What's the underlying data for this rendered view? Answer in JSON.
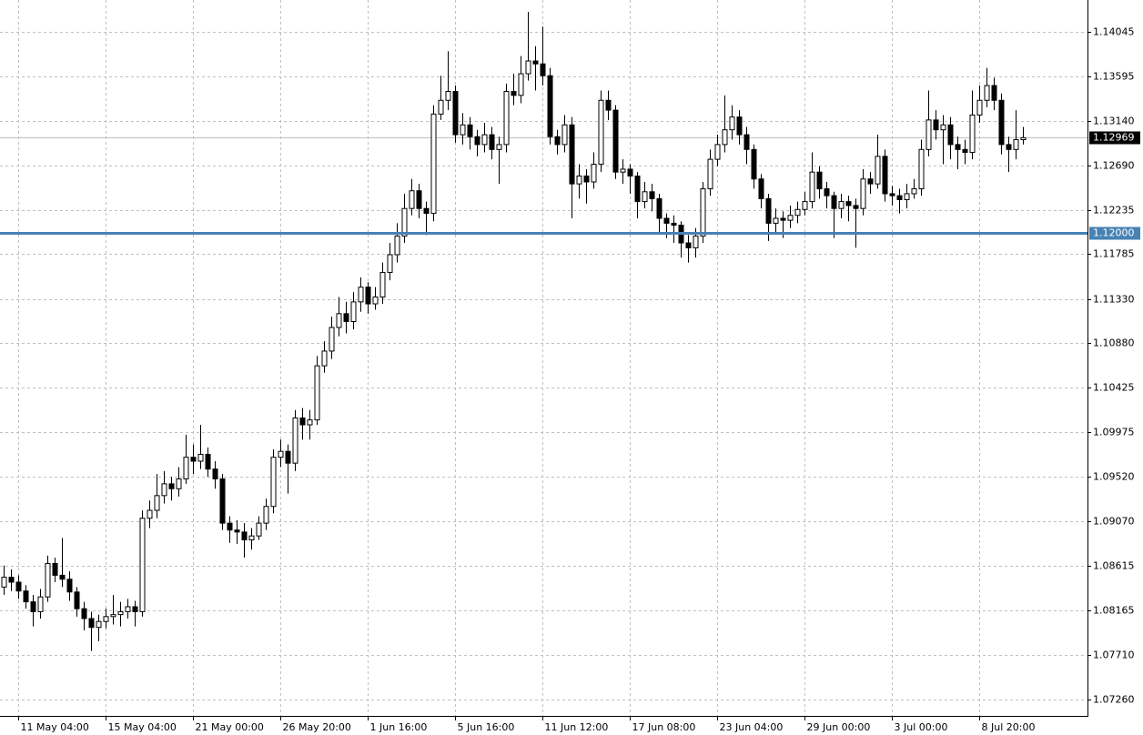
{
  "chart_data": {
    "type": "candlestick",
    "categories": [
      null,
      null,
      "11 May 04:00",
      null,
      null,
      null,
      null,
      null,
      null,
      null,
      null,
      null,
      null,
      null,
      "15 May 04:00",
      null,
      null,
      null,
      null,
      null,
      null,
      null,
      null,
      null,
      null,
      null,
      "21 May 00:00",
      null,
      null,
      null,
      null,
      null,
      null,
      null,
      null,
      null,
      null,
      null,
      "26 May 20:00",
      null,
      null,
      null,
      null,
      null,
      null,
      null,
      null,
      null,
      null,
      null,
      "1 Jun 16:00",
      null,
      null,
      null,
      null,
      null,
      null,
      null,
      null,
      null,
      null,
      null,
      "5 Jun 16:00",
      null,
      null,
      null,
      null,
      null,
      null,
      null,
      null,
      null,
      null,
      null,
      "11 Jun 12:00",
      null,
      null,
      null,
      null,
      null,
      null,
      null,
      null,
      null,
      null,
      null,
      "17 Jun 08:00",
      null,
      null,
      null,
      null,
      null,
      null,
      null,
      null,
      null,
      null,
      null,
      "23 Jun 04:00",
      null,
      null,
      null,
      null,
      null,
      null,
      null,
      null,
      null,
      null,
      null,
      "29 Jun 00:00",
      null,
      null,
      null,
      null,
      null,
      null,
      null,
      null,
      null,
      null,
      null,
      "3 Jul 00:00",
      null,
      null,
      null,
      null,
      null,
      null,
      null,
      null,
      null,
      null,
      null,
      "8 Jul 20:00",
      null,
      null,
      null,
      null,
      null,
      null
    ],
    "open": [
      1.084,
      1.085,
      1.0845,
      1.0836,
      1.0825,
      1.0815,
      1.083,
      1.0864,
      1.0852,
      1.0848,
      1.0835,
      1.0818,
      1.0808,
      1.0799,
      1.0805,
      1.081,
      1.0812,
      1.0815,
      1.082,
      1.0815,
      1.091,
      1.0918,
      1.0933,
      1.0945,
      1.094,
      1.095,
      1.0972,
      1.0968,
      1.0975,
      1.096,
      1.095,
      1.0905,
      1.0898,
      1.0896,
      1.0888,
      1.0892,
      1.0905,
      1.0922,
      1.0972,
      1.0978,
      1.0966,
      1.1012,
      1.1005,
      1.101,
      1.1065,
      1.108,
      1.1104,
      1.1118,
      1.111,
      1.113,
      1.1145,
      1.1128,
      1.1135,
      1.116,
      1.1178,
      1.1197,
      1.1225,
      1.1243,
      1.1225,
      1.122,
      1.1321,
      1.1335,
      1.1344,
      1.13,
      1.131,
      1.1298,
      1.129,
      1.13,
      1.1285,
      1.129,
      1.1344,
      1.134,
      1.1362,
      1.1375,
      1.1372,
      1.136,
      1.1298,
      1.129,
      1.131,
      1.125,
      1.1258,
      1.1252,
      1.127,
      1.1335,
      1.1325,
      1.1262,
      1.1265,
      1.1258,
      1.1232,
      1.1242,
      1.1235,
      1.1215,
      1.121,
      1.1208,
      1.119,
      1.1185,
      1.1197,
      1.1245,
      1.1275,
      1.129,
      1.1305,
      1.1318,
      1.13,
      1.1285,
      1.1255,
      1.1235,
      1.121,
      1.1215,
      1.1213,
      1.1218,
      1.1224,
      1.1232,
      1.1262,
      1.1245,
      1.1238,
      1.1225,
      1.1232,
      1.1228,
      1.1225,
      1.1255,
      1.125,
      1.1278,
      1.124,
      1.1238,
      1.1234,
      1.124,
      1.1245,
      1.1285,
      1.1315,
      1.1305,
      1.131,
      1.129,
      1.1285,
      1.1282,
      1.132,
      1.1335,
      1.135,
      1.1335,
      1.129,
      1.1285,
      1.1295
    ],
    "high": [
      1.0862,
      1.0858,
      1.0852,
      1.0842,
      1.0832,
      1.0838,
      1.0872,
      1.087,
      1.089,
      1.0856,
      1.084,
      1.0825,
      1.0815,
      1.0812,
      1.0818,
      1.0832,
      1.0825,
      1.0828,
      1.0826,
      1.0918,
      1.0928,
      1.0955,
      1.0958,
      1.0952,
      1.0962,
      1.0995,
      1.0985,
      1.1005,
      1.0982,
      1.0968,
      1.0955,
      1.0912,
      1.0908,
      1.0905,
      1.09,
      1.0912,
      1.093,
      1.098,
      1.099,
      1.0985,
      1.102,
      1.1022,
      1.102,
      1.1075,
      1.109,
      1.1115,
      1.1135,
      1.113,
      1.114,
      1.1155,
      1.115,
      1.1145,
      1.117,
      1.119,
      1.121,
      1.124,
      1.1255,
      1.125,
      1.1232,
      1.133,
      1.136,
      1.1385,
      1.135,
      1.1322,
      1.1318,
      1.1305,
      1.1312,
      1.1308,
      1.1298,
      1.1352,
      1.1362,
      1.138,
      1.1425,
      1.139,
      1.141,
      1.1368,
      1.1305,
      1.132,
      1.1318,
      1.127,
      1.1265,
      1.1282,
      1.1345,
      1.1345,
      1.133,
      1.1275,
      1.127,
      1.1262,
      1.1252,
      1.125,
      1.124,
      1.122,
      1.1218,
      1.1212,
      1.1198,
      1.1205,
      1.1252,
      1.1285,
      1.13,
      1.134,
      1.133,
      1.1325,
      1.1308,
      1.129,
      1.126,
      1.124,
      1.1225,
      1.1222,
      1.1228,
      1.1232,
      1.1242,
      1.1282,
      1.1268,
      1.1252,
      1.1242,
      1.124,
      1.1238,
      1.1235,
      1.1265,
      1.1262,
      1.13,
      1.1285,
      1.1248,
      1.1245,
      1.125,
      1.1255,
      1.1295,
      1.1345,
      1.1325,
      1.132,
      1.1318,
      1.1298,
      1.1295,
      1.1345,
      1.135,
      1.1368,
      1.1358,
      1.1342,
      1.1298,
      1.1325,
      1.1308
    ],
    "low": [
      1.0832,
      1.0836,
      1.0828,
      1.0818,
      1.08,
      1.0808,
      1.0825,
      1.0845,
      1.084,
      1.0826,
      1.081,
      1.0796,
      1.0775,
      1.0785,
      1.0798,
      1.0802,
      1.08,
      1.0808,
      1.08,
      1.081,
      1.09,
      1.091,
      1.0925,
      1.0928,
      1.0932,
      1.0945,
      1.0955,
      1.096,
      1.0952,
      1.094,
      1.0898,
      1.0885,
      1.0884,
      1.087,
      1.0878,
      1.0888,
      1.0898,
      1.0915,
      1.0962,
      1.0935,
      1.0958,
      1.099,
      1.099,
      1.1005,
      1.1058,
      1.1072,
      1.1095,
      1.1098,
      1.1102,
      1.112,
      1.1118,
      1.1122,
      1.1128,
      1.1152,
      1.117,
      1.119,
      1.1218,
      1.1215,
      1.1198,
      1.1212,
      1.1315,
      1.1325,
      1.1292,
      1.129,
      1.1285,
      1.1278,
      1.1282,
      1.1275,
      1.125,
      1.1282,
      1.133,
      1.1332,
      1.1355,
      1.1345,
      1.135,
      1.129,
      1.128,
      1.1282,
      1.1215,
      1.1235,
      1.123,
      1.1245,
      1.1262,
      1.1315,
      1.1255,
      1.125,
      1.124,
      1.1215,
      1.1225,
      1.1222,
      1.12,
      1.1195,
      1.119,
      1.1175,
      1.117,
      1.1175,
      1.119,
      1.1238,
      1.1268,
      1.1282,
      1.1295,
      1.129,
      1.127,
      1.1245,
      1.1225,
      1.1192,
      1.12,
      1.1195,
      1.1205,
      1.121,
      1.1218,
      1.1225,
      1.1235,
      1.1225,
      1.1195,
      1.1215,
      1.1212,
      1.1185,
      1.1218,
      1.124,
      1.1245,
      1.1232,
      1.1228,
      1.122,
      1.1225,
      1.1235,
      1.1238,
      1.1278,
      1.1295,
      1.127,
      1.1275,
      1.1265,
      1.127,
      1.1275,
      1.1312,
      1.1328,
      1.1325,
      1.128,
      1.1262,
      1.1275,
      1.129
    ],
    "close": [
      1.085,
      1.0845,
      1.0836,
      1.0825,
      1.0815,
      1.083,
      1.0864,
      1.0852,
      1.0848,
      1.0835,
      1.0818,
      1.0808,
      1.0799,
      1.0805,
      1.081,
      1.0812,
      1.0815,
      1.082,
      1.0815,
      1.091,
      1.0918,
      1.0933,
      1.0945,
      1.094,
      1.095,
      1.0972,
      1.0968,
      1.0975,
      1.096,
      1.095,
      1.0905,
      1.0898,
      1.0896,
      1.0888,
      1.0892,
      1.0905,
      1.0922,
      1.0972,
      1.0978,
      1.0966,
      1.1012,
      1.1005,
      1.101,
      1.1065,
      1.108,
      1.1104,
      1.1118,
      1.111,
      1.113,
      1.1145,
      1.1128,
      1.1135,
      1.116,
      1.1178,
      1.1197,
      1.1225,
      1.1243,
      1.1225,
      1.122,
      1.1321,
      1.1335,
      1.1344,
      1.13,
      1.131,
      1.1298,
      1.129,
      1.13,
      1.1285,
      1.129,
      1.1344,
      1.134,
      1.1362,
      1.1375,
      1.1372,
      1.136,
      1.1298,
      1.129,
      1.131,
      1.125,
      1.1258,
      1.1252,
      1.127,
      1.1335,
      1.1325,
      1.1262,
      1.1265,
      1.1258,
      1.1232,
      1.1242,
      1.1235,
      1.1215,
      1.121,
      1.1208,
      1.119,
      1.1185,
      1.1197,
      1.1245,
      1.1275,
      1.129,
      1.1305,
      1.1318,
      1.13,
      1.1285,
      1.1255,
      1.1235,
      1.121,
      1.1215,
      1.1213,
      1.1218,
      1.1224,
      1.1232,
      1.1262,
      1.1245,
      1.1238,
      1.1225,
      1.1232,
      1.1228,
      1.1225,
      1.1255,
      1.125,
      1.1278,
      1.124,
      1.1238,
      1.1234,
      1.124,
      1.1245,
      1.1285,
      1.1315,
      1.1305,
      1.131,
      1.129,
      1.1285,
      1.1282,
      1.132,
      1.1335,
      1.135,
      1.1335,
      1.129,
      1.1285,
      1.1295,
      1.1297
    ],
    "bull_color": "#ffffff",
    "bear_color": "#000000",
    "wick_color": "#000000",
    "ylim": [
      1.0709,
      1.1437
    ],
    "yticks": [
      1.14045,
      1.13595,
      {
        "value": 1.1314,
        "label": "1.13140"
      },
      {
        "value": 1.1269,
        "label": "1.12690"
      },
      1.12235,
      1.11785,
      {
        "value": 1.1133,
        "label": "1.11330"
      },
      {
        "value": 1.1088,
        "label": "1.10880"
      },
      1.10425,
      1.09975,
      {
        "value": 1.0952,
        "label": "1.09520"
      },
      {
        "value": 1.0907,
        "label": "1.09070"
      },
      1.08615,
      1.08165,
      {
        "value": 1.0771,
        "label": "1.07710"
      },
      {
        "value": 1.0726,
        "label": "1.07260"
      }
    ],
    "grid": true,
    "last_price": 1.12969,
    "hline": {
      "value": 1.12,
      "label": "1.12000",
      "color": "#4682b4"
    }
  }
}
